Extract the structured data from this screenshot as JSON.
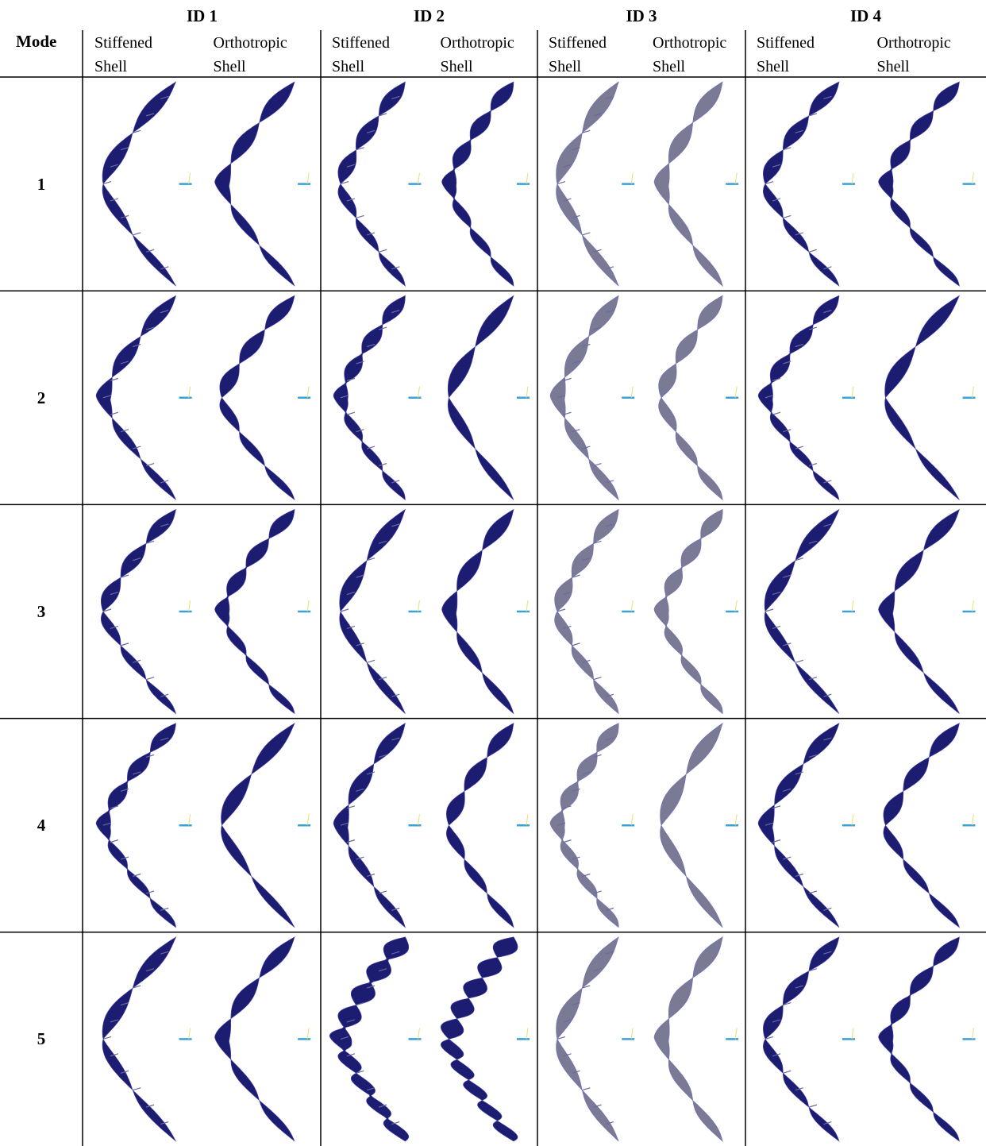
{
  "table": {
    "corner": "Mode",
    "groups": [
      {
        "title": "ID 1",
        "columns": [
          "Stiffened Shell",
          "Orthotropic Shell"
        ]
      },
      {
        "title": "ID 2",
        "columns": [
          "Stiffened Shell",
          "Orthotropic Shell"
        ]
      },
      {
        "title": "ID 3",
        "columns": [
          "Stiffened Shell",
          "Orthotropic Shell"
        ]
      },
      {
        "title": "ID 4",
        "columns": [
          "Stiffened Shell",
          "Orthotropic Shell"
        ]
      }
    ],
    "rows": [
      "1",
      "2",
      "3",
      "4",
      "5"
    ]
  }
}
